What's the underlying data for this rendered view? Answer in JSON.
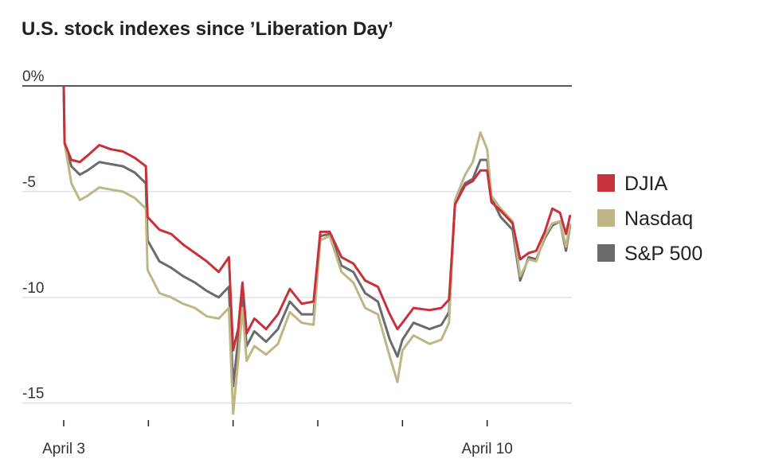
{
  "chart_data": {
    "type": "line",
    "title": "U.S. stock indexes since ’Liberation Day’",
    "x": [
      0,
      0.01,
      0.09,
      0.19,
      0.28,
      0.42,
      0.56,
      0.7,
      0.84,
      0.97,
      0.99,
      1.13,
      1.27,
      1.41,
      1.55,
      1.69,
      1.83,
      1.95,
      2.0,
      2.06,
      2.11,
      2.16,
      2.25,
      2.39,
      2.53,
      2.67,
      2.81,
      2.95,
      3.03,
      3.14,
      3.28,
      3.42,
      3.56,
      3.71,
      3.85,
      3.94,
      4.0,
      4.13,
      4.32,
      4.46,
      4.55,
      4.62,
      4.74,
      4.83,
      4.92,
      5.0,
      5.05,
      5.16,
      5.3,
      5.39,
      5.49,
      5.58,
      5.68,
      5.77,
      5.86,
      5.93,
      5.98
    ],
    "series": [
      {
        "name": "DJIA",
        "color": "#c8313a",
        "values": [
          0,
          -2.7,
          -3.5,
          -3.6,
          -3.3,
          -2.8,
          -3.0,
          -3.1,
          -3.4,
          -3.8,
          -6.2,
          -6.8,
          -7.0,
          -7.5,
          -7.9,
          -8.3,
          -8.8,
          -8.1,
          -12.5,
          -11.5,
          -9.3,
          -11.7,
          -11.0,
          -11.5,
          -10.8,
          -9.6,
          -10.3,
          -10.2,
          -6.9,
          -6.9,
          -8.1,
          -8.4,
          -9.2,
          -9.5,
          -10.8,
          -11.5,
          -11.2,
          -10.5,
          -10.6,
          -10.5,
          -10.1,
          -5.6,
          -4.7,
          -4.5,
          -4.0,
          -4.0,
          -5.5,
          -5.9,
          -6.5,
          -8.2,
          -7.9,
          -7.8,
          -6.9,
          -5.8,
          -6.0,
          -7.0,
          -6.1
        ]
      },
      {
        "name": "Nasdaq",
        "color": "#bfb585",
        "values": [
          0,
          -2.7,
          -4.6,
          -5.4,
          -5.2,
          -4.8,
          -4.9,
          -5.0,
          -5.3,
          -5.8,
          -8.7,
          -9.8,
          -10.0,
          -10.3,
          -10.5,
          -10.9,
          -11.0,
          -10.5,
          -15.5,
          -13.0,
          -10.5,
          -13.0,
          -12.3,
          -12.7,
          -12.2,
          -10.7,
          -11.2,
          -11.3,
          -7.3,
          -7.1,
          -8.8,
          -9.3,
          -10.5,
          -10.8,
          -12.8,
          -14.0,
          -12.5,
          -11.8,
          -12.2,
          -12.0,
          -11.2,
          -5.4,
          -4.2,
          -3.6,
          -2.2,
          -3.0,
          -5.2,
          -5.8,
          -6.4,
          -9.0,
          -8.2,
          -8.3,
          -7.1,
          -6.5,
          -6.4,
          -7.6,
          -6.5
        ]
      },
      {
        "name": "S&P 500",
        "color": "#6b6b6b",
        "values": [
          0,
          -2.7,
          -3.8,
          -4.2,
          -4.0,
          -3.6,
          -3.7,
          -3.8,
          -4.1,
          -4.6,
          -7.3,
          -8.3,
          -8.6,
          -9.0,
          -9.3,
          -9.7,
          -10.0,
          -9.5,
          -14.2,
          -12.0,
          -10.0,
          -12.3,
          -11.6,
          -12.1,
          -11.5,
          -10.2,
          -10.8,
          -10.8,
          -7.1,
          -7.0,
          -8.5,
          -8.8,
          -9.8,
          -10.2,
          -12.0,
          -12.8,
          -12.0,
          -11.2,
          -11.5,
          -11.3,
          -10.7,
          -5.5,
          -4.6,
          -4.4,
          -3.5,
          -3.5,
          -5.3,
          -6.2,
          -6.8,
          -9.2,
          -8.1,
          -8.2,
          -7.2,
          -6.6,
          -6.4,
          -7.8,
          -6.6
        ]
      }
    ],
    "xlim": [
      0,
      6
    ],
    "xticks": [
      {
        "value": 0,
        "label": "April 3"
      },
      {
        "value": 5,
        "label": "April 10"
      }
    ],
    "xminorticks": [
      1,
      2,
      3,
      4
    ],
    "ylim": [
      -15.8,
      0
    ],
    "yticks": [
      {
        "value": 0,
        "label": "0%"
      },
      -5,
      -10,
      -15
    ],
    "grid": true,
    "legend": "right"
  }
}
